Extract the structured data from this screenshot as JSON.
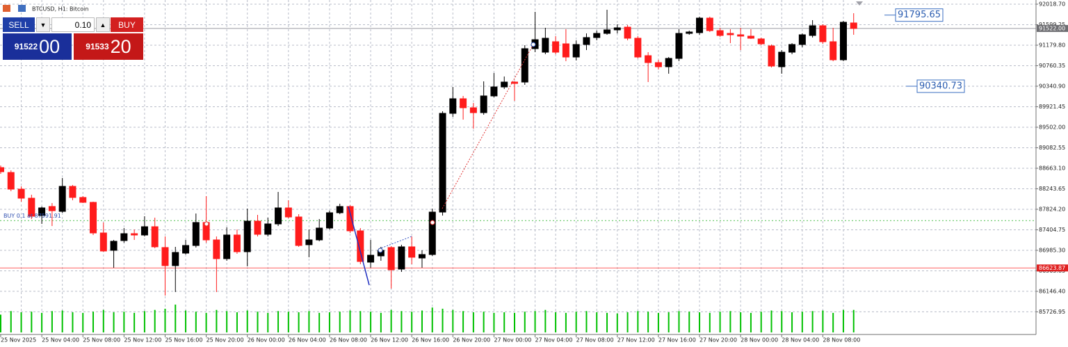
{
  "chart_data": {
    "type": "candlestick",
    "title": "BTCUSD, H1: Bitcoin",
    "categories": [
      "25 Nov 2025",
      null,
      null,
      null,
      "25 Nov 04:00",
      null,
      null,
      null,
      "25 Nov 08:00",
      null,
      null,
      null,
      "25 Nov 12:00",
      null,
      null,
      null,
      "25 Nov 16:00",
      null,
      null,
      null,
      "25 Nov 20:00",
      null,
      null,
      null,
      "26 Nov 00:00",
      null,
      null,
      null,
      "26 Nov 04:00",
      null,
      null,
      null,
      "26 Nov 08:00",
      null,
      null,
      null,
      "26 Nov 12:00",
      null,
      null,
      null,
      "26 Nov 16:00",
      null,
      null,
      null,
      "26 Nov 20:00",
      null,
      null,
      null,
      "27 Nov 00:00",
      null,
      null,
      null,
      "27 Nov 04:00",
      null,
      null,
      null,
      "27 Nov 08:00",
      null,
      null,
      null,
      "27 Nov 12:00",
      null,
      null,
      null,
      "27 Nov 16:00",
      null,
      null,
      null,
      "27 Nov 20:00",
      null,
      null,
      null,
      "28 Nov 00:00",
      null,
      null,
      null,
      "28 Nov 04:00",
      null,
      null,
      null,
      "28 Nov 08:00",
      null,
      null,
      null
    ],
    "open": [
      88677,
      88577,
      88236,
      88051,
      87696,
      87881,
      87781,
      88293,
      88066,
      87966,
      87340,
      86985,
      87184,
      87326,
      87298,
      87468,
      87042,
      86672,
      86928,
      87084,
      87554,
      87198,
      86814,
      87298,
      86956,
      87582,
      87312,
      87525,
      87852,
      87667,
      87099,
      87198,
      87440,
      87753,
      87881,
      87383,
      86743,
      86871,
      87042,
      86601,
      87056,
      86828,
      86899,
      87767,
      89786,
      90085,
      89900,
      89800,
      90142,
      90326,
      90426,
      90426,
      91109,
      91037,
      91251,
      91208,
      90938,
      91194,
      91336,
      91421,
      91493,
      91549,
      91322,
      90966,
      90824,
      90739,
      90910,
      91421,
      91436,
      91734,
      91478,
      91421,
      91393,
      91365,
      91308,
      91165,
      90739,
      91037,
      91194,
      91379,
      91578,
      91251,
      90881,
      91635
    ],
    "high": [
      88720,
      88620,
      88293,
      88122,
      87881,
      87952,
      88464,
      88321,
      88094,
      87980,
      87554,
      87198,
      87440,
      87411,
      87682,
      87653,
      87269,
      87056,
      87198,
      87738,
      88094,
      87269,
      87454,
      87411,
      87838,
      87710,
      87653,
      88179,
      88009,
      87724,
      87411,
      87625,
      87795,
      87938,
      87909,
      87440,
      87198,
      87056,
      87070,
      87099,
      87269,
      86985,
      87838,
      89829,
      90326,
      90142,
      89999,
      90440,
      90611,
      90540,
      90440,
      91180,
      91862,
      91535,
      91365,
      91507,
      91279,
      91421,
      91478,
      91905,
      91606,
      91592,
      91365,
      91037,
      90881,
      90938,
      91507,
      91478,
      91763,
      91763,
      91535,
      91507,
      91535,
      91507,
      91336,
      91194,
      91080,
      91222,
      91421,
      91692,
      91606,
      91535,
      91677,
      91834
    ],
    "low": [
      88549,
      88193,
      87980,
      87625,
      87525,
      87482,
      87753,
      88009,
      87952,
      87298,
      86956,
      86629,
      87141,
      87198,
      87269,
      87027,
      86060,
      86132,
      86899,
      87042,
      87141,
      86132,
      86771,
      86914,
      86658,
      87269,
      87269,
      87482,
      87639,
      87056,
      86843,
      87170,
      87411,
      87724,
      87340,
      86700,
      86629,
      86771,
      86203,
      86544,
      86700,
      86629,
      86871,
      87696,
      89715,
      89658,
      89473,
      89758,
      90113,
      90284,
      90042,
      90369,
      91037,
      90995,
      90995,
      90853,
      90867,
      91080,
      91279,
      91393,
      91421,
      91279,
      90910,
      90426,
      90682,
      90597,
      90853,
      91393,
      91393,
      91450,
      91350,
      91222,
      91080,
      91308,
      91180,
      90725,
      90597,
      90995,
      91137,
      91336,
      91208,
      90853,
      90853,
      91393
    ],
    "close": [
      88592,
      88236,
      88051,
      87682,
      87852,
      87795,
      88293,
      88066,
      87966,
      87340,
      86971,
      87170,
      87326,
      87298,
      87468,
      87056,
      86672,
      86942,
      87084,
      87554,
      87198,
      86814,
      87298,
      86956,
      87582,
      87312,
      87525,
      87852,
      87667,
      87084,
      87198,
      87440,
      87753,
      87881,
      87383,
      86757,
      86885,
      86985,
      86587,
      87056,
      86843,
      86899,
      87767,
      89786,
      90085,
      89900,
      89800,
      90142,
      90326,
      90426,
      90398,
      91109,
      91293,
      91322,
      91037,
      90938,
      91194,
      91336,
      91421,
      91493,
      91535,
      91322,
      90938,
      90824,
      90739,
      90910,
      91421,
      91450,
      91734,
      91478,
      91379,
      91393,
      91365,
      91322,
      91208,
      90753,
      91037,
      91194,
      91393,
      91578,
      91251,
      90881,
      91649,
      91522
    ],
    "volume": [
      30,
      36,
      34,
      35,
      33,
      36,
      37,
      34,
      33,
      35,
      38,
      34,
      35,
      33,
      36,
      38,
      40,
      47,
      37,
      35,
      33,
      38,
      36,
      34,
      37,
      35,
      33,
      36,
      35,
      34,
      36,
      33,
      34,
      35,
      37,
      36,
      35,
      33,
      38,
      36,
      35,
      37,
      42,
      40,
      38,
      36,
      34,
      35,
      33,
      34,
      33,
      35,
      36,
      38,
      34,
      33,
      35,
      36,
      34,
      33,
      32,
      34,
      36,
      35,
      33,
      34,
      36,
      35,
      34,
      33,
      35,
      36,
      34,
      33,
      35,
      37,
      36,
      34,
      35,
      36,
      37,
      33,
      38,
      38
    ],
    "colors": {
      "up": "#000000",
      "down": "#ff1c1c",
      "volume": "#00c000",
      "grid": "#b8bcc8"
    },
    "ylim": [
      85278,
      92104
    ],
    "yticks": [
      {
        "value": 92018.7,
        "label": "92018.70"
      },
      {
        "value": 91599.25,
        "label": "91599.25"
      },
      {
        "value": 91179.8,
        "label": "91179.80"
      },
      {
        "value": 90760.35,
        "label": "90760.35"
      },
      {
        "value": 90340.9,
        "label": "90340.90"
      },
      {
        "value": 89921.45,
        "label": "89921.45"
      },
      {
        "value": 89502.0,
        "label": "89502.00"
      },
      {
        "value": 89082.55,
        "label": "89082.55"
      },
      {
        "value": 88663.1,
        "label": "88663.10"
      },
      {
        "value": 88243.65,
        "label": "88243.65"
      },
      {
        "value": 87824.2,
        "label": "87824.20"
      },
      {
        "value": 87404.75,
        "label": "87404.75"
      },
      {
        "value": 86985.3,
        "label": "86985.30"
      },
      {
        "value": 86565.85,
        "label": "86565.85"
      },
      {
        "value": 86146.4,
        "label": "86146.40"
      },
      {
        "value": 85726.95,
        "label": "85726.95"
      }
    ],
    "grid": true,
    "bid_line": {
      "value": 91522.0,
      "label": "91522.00"
    },
    "alert_line": {
      "value": 86623.87,
      "label": "86623.87"
    },
    "order_line": {
      "value": 87591.91,
      "label": "BUY 0.1 at 87591.91"
    },
    "price_labels": [
      {
        "value": 91795.65,
        "label": "91795.65"
      },
      {
        "value": 90340.73,
        "label": "90340.73"
      }
    ]
  },
  "trade_panel": {
    "sell": "SELL",
    "buy": "BUY",
    "lot": "0.10",
    "bid_main": "91522",
    "bid_pips": "00",
    "ask_main": "91533",
    "ask_pips": "20"
  }
}
